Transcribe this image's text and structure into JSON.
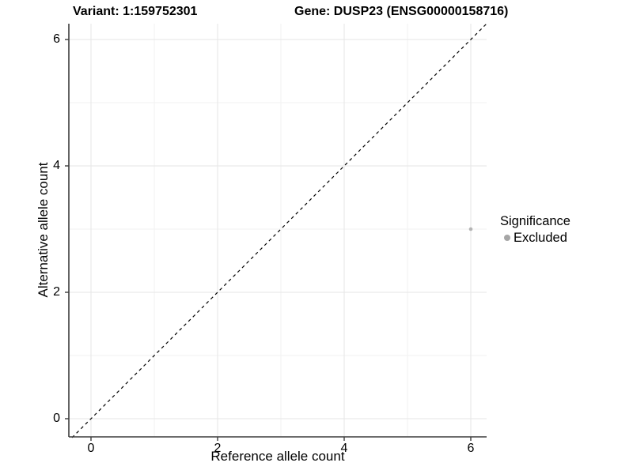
{
  "header": {
    "variant_title": "Variant: 1:159752301",
    "gene_title": "Gene: DUSP23 (ENSG00000158716)"
  },
  "legend": {
    "title": "Significance",
    "items": [
      {
        "label": "Excluded",
        "color": "#a6a6a6"
      }
    ]
  },
  "chart_data": {
    "type": "scatter",
    "title": "Variant: 1:159752301 — Gene: DUSP23 (ENSG00000158716)",
    "xlabel": "Reference allele count",
    "ylabel": "Alternative allele count",
    "xlim": [
      -0.35,
      6.25
    ],
    "ylim": [
      -0.3,
      6.25
    ],
    "x_ticks": [
      0,
      2,
      4,
      6
    ],
    "y_ticks": [
      0,
      2,
      4,
      6
    ],
    "x_minor_ticks": [
      1,
      3,
      5
    ],
    "y_minor_ticks": [
      1,
      3,
      5
    ],
    "grid": "major and minor gridlines on white background",
    "legend_title": "Significance",
    "legend_position": "right",
    "series": [
      {
        "name": "Excluded",
        "color": "#b4b4b4",
        "points": [
          {
            "x": 6,
            "y": 3
          }
        ]
      }
    ],
    "annotations": [
      {
        "type": "identity-line",
        "style": "dashed",
        "color": "#000000",
        "from": [
          -0.3,
          -0.3
        ],
        "to": [
          6.25,
          6.25
        ]
      }
    ]
  },
  "colors": {
    "background": "#ffffff",
    "grid_major": "#e6e6e6",
    "grid_minor": "#f2f2f2",
    "axis": "#3c3c3c",
    "text": "#000000",
    "point": "#b4b4b4",
    "legend_key": "#a6a6a6"
  }
}
